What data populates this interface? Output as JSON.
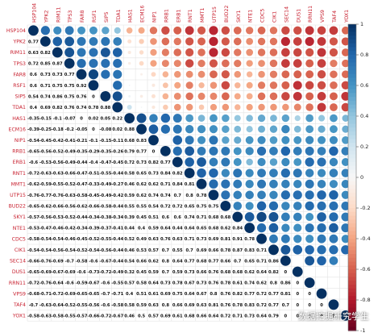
{
  "chart_data": {
    "type": "heatmap",
    "variables": [
      "HSP104",
      "YPK2",
      "RIM11",
      "TPS3",
      "FAR8",
      "RSF1",
      "SIP5",
      "TDA1",
      "HAS1",
      "ECM16",
      "NIP1",
      "RRB1",
      "ERB1",
      "RNT1",
      "MMT1",
      "UTP15",
      "BUD22",
      "SKY1",
      "NTE1",
      "CDC5",
      "CIK1",
      "SEC14",
      "DUS1",
      "RRN11",
      "VPS9",
      "TAF4",
      "YOX1"
    ],
    "lower_values": [
      [
        0.77
      ],
      [
        0.63,
        0.82
      ],
      [
        0.72,
        0.85,
        0.87
      ],
      [
        0.6,
        0.73,
        0.73,
        0.77
      ],
      [
        0.6,
        0.71,
        0.75,
        0.75,
        0.92
      ],
      [
        0.54,
        0.74,
        0.86,
        0.75,
        0.76
      ],
      [
        0.4,
        0.69,
        0.82,
        0.76,
        0.74,
        0.78,
        0.88
      ],
      [
        -0.35,
        -0.15,
        -0.1,
        -0.07,
        0.0,
        0.02,
        0.05,
        0.22
      ],
      [
        -0.39,
        -0.25,
        -0.18,
        -0.2,
        -0.05,
        0.0,
        -0.08,
        0.02,
        0.88
      ],
      [
        -0.54,
        -0.45,
        -0.42,
        -0.41,
        -0.21,
        -0.1,
        -0.15,
        -0.11,
        0.68,
        0.83
      ],
      [
        -0.65,
        -0.56,
        -0.52,
        -0.49,
        -0.35,
        -0.29,
        -0.35,
        -0.26,
        0.79,
        0.77
      ],
      [
        -0.6,
        -0.53,
        -0.56,
        -0.49,
        -0.44,
        -0.4,
        -0.47,
        -0.45,
        0.72,
        0.73,
        0.82,
        0.77
      ],
      [
        -0.72,
        -0.63,
        -0.63,
        -0.66,
        -0.47,
        -0.51,
        -0.55,
        -0.44,
        0.58,
        0.65,
        0.73,
        0.84,
        0.82
      ],
      [
        -0.62,
        -0.59,
        -0.55,
        -0.52,
        -0.47,
        -0.33,
        -0.49,
        -0.27,
        0.46,
        0.62,
        0.62,
        0.71,
        0.84,
        0.81
      ],
      [
        -0.76,
        -0.77,
        -0.76,
        -0.63,
        -0.58,
        -0.45,
        -0.49,
        -0.42,
        0.59,
        0.62,
        0.74,
        0.74,
        0.7,
        0.8,
        0.78
      ],
      [
        -0.65,
        -0.62,
        -0.66,
        -0.56,
        -0.62,
        -0.66,
        -0.58,
        -0.44,
        0.55,
        0.55,
        0.54,
        0.72,
        0.72,
        0.65,
        0.75,
        0.75
      ],
      [
        -0.57,
        -0.56,
        -0.53,
        -0.52,
        -0.44,
        -0.34,
        -0.38,
        -0.34,
        0.39,
        0.45,
        0.51,
        0.6,
        0.6,
        0.74,
        0.71,
        0.68,
        0.68
      ],
      [
        -0.53,
        -0.47,
        -0.46,
        -0.42,
        -0.34,
        -0.39,
        -0.37,
        -0.41,
        0.44,
        0.4,
        0.59,
        0.64,
        0.44,
        0.64,
        0.65,
        0.68,
        0.62,
        0.84
      ],
      [
        -0.58,
        -0.54,
        -0.54,
        -0.46,
        -0.45,
        -0.52,
        -0.55,
        -0.44,
        0.52,
        0.49,
        0.63,
        0.76,
        0.63,
        0.71,
        0.73,
        0.69,
        0.81,
        0.91,
        0.78
      ],
      [
        -0.54,
        -0.54,
        -0.56,
        -0.54,
        -0.52,
        -0.54,
        -0.56,
        -0.44,
        0.46,
        0.53,
        0.57,
        0.7,
        0.55,
        0.7,
        0.69,
        0.66,
        0.78,
        0.87,
        0.83,
        0.71,
        0.69
      ],
      [
        -0.66,
        -0.76,
        -0.69,
        -0.7,
        -0.58,
        -0.6,
        -0.67,
        -0.44,
        0.54,
        0.66,
        0.62,
        0.8,
        0.64,
        0.77,
        0.68,
        0.77,
        0.66,
        0.7,
        0.65,
        0.71,
        0.86
      ],
      [
        -0.65,
        -0.69,
        -0.67,
        -0.69,
        -0.6,
        -0.73,
        -0.72,
        -0.49,
        0.32,
        0.45,
        0.59,
        0.7,
        0.59,
        0.73,
        0.66,
        0.76,
        0.68,
        0.68,
        0.62,
        0.64,
        0.82
      ],
      [
        -0.72,
        -0.76,
        -0.64,
        -0.6,
        -0.59,
        -0.67,
        -0.6,
        -0.55,
        0.57,
        0.58,
        0.64,
        0.73,
        0.78,
        0.67,
        0.73,
        0.76,
        0.78,
        0.61,
        0.74,
        0.62,
        0.8,
        0.86
      ],
      [
        -0.68,
        -0.71,
        -0.72,
        -0.69,
        -0.65,
        -0.65,
        -0.7,
        -0.71,
        0.4,
        0.51,
        0.61,
        0.69,
        0.75,
        0.64,
        0.67,
        0.8,
        0.76,
        0.82,
        0.77,
        0.72,
        0.77,
        0.81
      ],
      [
        -0.7,
        -0.63,
        -0.64,
        -0.52,
        -0.55,
        -0.56,
        -0.6,
        -0.58,
        0.58,
        0.59,
        0.63,
        0.8,
        0.66,
        0.69,
        0.63,
        0.81,
        0.76,
        0.78,
        0.83,
        0.72,
        0.77,
        0.7
      ],
      [
        -0.58,
        -0.63,
        -0.58,
        -0.55,
        -0.57,
        -0.66,
        -0.72,
        -0.67,
        0.46,
        0.5,
        0.57,
        0.69,
        0.61,
        0.68,
        0.66,
        0.64,
        0.72,
        0.71,
        0.73,
        0.64,
        0.79
      ]
    ],
    "colorbar_ticks": [
      "1",
      "0.8",
      "0.6",
      "0.4",
      "0.2",
      "0",
      "-0.2",
      "-0.4",
      "-0.6",
      "-0.8",
      "-1"
    ],
    "color_scale": {
      "min": -1,
      "max": 1,
      "low": "#67001f",
      "mid": "#ffffff",
      "high": "#053061"
    },
    "watermark": "数据挖掘研究学生"
  }
}
